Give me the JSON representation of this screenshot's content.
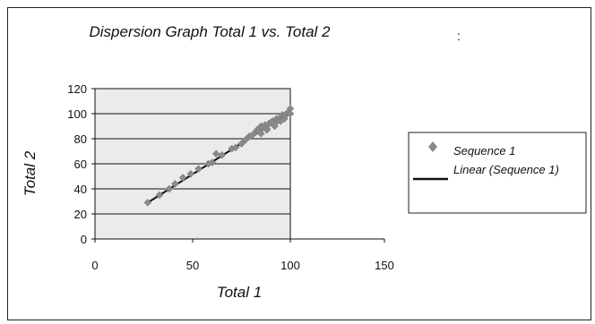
{
  "chart_data": {
    "type": "scatter",
    "title": "Dispersion Graph Total 1 vs. Total 2",
    "xlabel": "Total 1",
    "ylabel": "Total 2",
    "xlim": [
      0,
      150
    ],
    "ylim": [
      0,
      120
    ],
    "xticks": [
      "0",
      "50",
      "100",
      "150"
    ],
    "yticks": [
      "0",
      "20",
      "40",
      "60",
      "80",
      "100",
      "120"
    ],
    "grid": "horizontal",
    "legend_position": "right",
    "series": [
      {
        "name": "Sequence 1",
        "color": "#8a8a8a",
        "marker": "diamond",
        "x": [
          27,
          33,
          38,
          41,
          45,
          49,
          53,
          58,
          60,
          62,
          65,
          70,
          72,
          75,
          77,
          79,
          80,
          82,
          83,
          84,
          85,
          86,
          87,
          88,
          89,
          90,
          91,
          92,
          93,
          94,
          95,
          96,
          97,
          98,
          99,
          100,
          100,
          85,
          88,
          92,
          95,
          97
        ],
        "y": [
          29,
          35,
          40,
          44,
          49,
          52,
          56,
          60,
          61,
          68,
          67,
          72,
          73,
          76,
          79,
          82,
          82,
          85,
          87,
          86,
          90,
          89,
          91,
          88,
          92,
          93,
          94,
          92,
          96,
          95,
          97,
          99,
          98,
          100,
          101,
          104,
          100,
          84,
          87,
          90,
          94,
          96
        ]
      }
    ],
    "trendline": {
      "name": "Linear (Sequence 1)",
      "color": "#111111",
      "x": [
        27,
        100
      ],
      "y": [
        29,
        101
      ]
    }
  }
}
